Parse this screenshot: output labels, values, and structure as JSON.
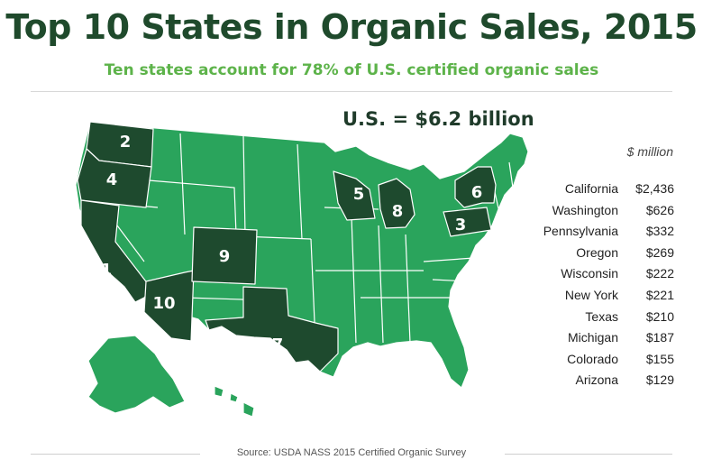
{
  "header": {
    "title": "Top 10 States in Organic Sales, 2015",
    "subtitle": "Ten states account for 78% of U.S. certified organic sales",
    "total": "U.S. = $6.2 billion"
  },
  "map": {
    "colors": {
      "top10": "#1e4a2e",
      "other": "#2aa45c",
      "border": "#ffffff"
    },
    "rank_labels": [
      {
        "rank": "1",
        "state": "California"
      },
      {
        "rank": "2",
        "state": "Washington"
      },
      {
        "rank": "3",
        "state": "Pennsylvania"
      },
      {
        "rank": "4",
        "state": "Oregon"
      },
      {
        "rank": "5",
        "state": "Wisconsin"
      },
      {
        "rank": "6",
        "state": "New York"
      },
      {
        "rank": "7",
        "state": "Texas"
      },
      {
        "rank": "8",
        "state": "Michigan"
      },
      {
        "rank": "9",
        "state": "Colorado"
      },
      {
        "rank": "10",
        "state": "Arizona"
      }
    ]
  },
  "table": {
    "unit": "$ million",
    "rows": [
      {
        "state": "California",
        "value": "$2,436"
      },
      {
        "state": "Washington",
        "value": "$626"
      },
      {
        "state": "Pennsylvania",
        "value": "$332"
      },
      {
        "state": "Oregon",
        "value": "$269"
      },
      {
        "state": "Wisconsin",
        "value": "$222"
      },
      {
        "state": "New York",
        "value": "$221"
      },
      {
        "state": "Texas",
        "value": "$210"
      },
      {
        "state": "Michigan",
        "value": "$187"
      },
      {
        "state": "Colorado",
        "value": "$155"
      },
      {
        "state": "Arizona",
        "value": "$129"
      }
    ]
  },
  "footer": {
    "source": "Source: USDA NASS 2015 Certified Organic Survey"
  }
}
